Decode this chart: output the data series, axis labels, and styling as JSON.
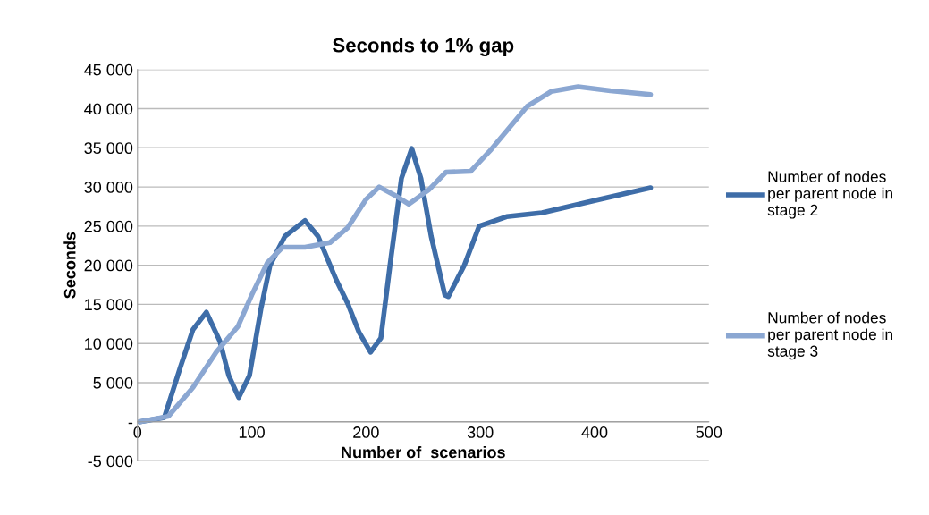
{
  "chart_data": {
    "type": "line",
    "title": "Seconds to 1% gap",
    "xlabel": "Number of  scenarios",
    "ylabel": "Seconds",
    "series": [
      {
        "name": "Number of nodes per parent node in stage 2",
        "color": "#3e6da8",
        "x": [
          2,
          23.5,
          37.6,
          48.6,
          60.3,
          72.1,
          79.9,
          88.6,
          98,
          108,
          116,
          129,
          146.6,
          158,
          174,
          184,
          194,
          204,
          213,
          221,
          231,
          240,
          248,
          257,
          269,
          272,
          286,
          299,
          323,
          354,
          401,
          449
        ],
        "values": [
          0,
          550,
          7000,
          11800,
          14000,
          10300,
          5900,
          3100,
          5900,
          14400,
          20000,
          23700,
          25700,
          23700,
          18100,
          15100,
          11400,
          8900,
          10700,
          20000,
          31100,
          34900,
          31100,
          23700,
          16200,
          16000,
          20000,
          25000,
          26200,
          26700,
          28300,
          29900
        ]
      },
      {
        "name": "Number of nodes per parent node in stage 3",
        "color": "#8ba7d2",
        "x": [
          2,
          27,
          48.6,
          69,
          88,
          100,
          113.6,
          127,
          146.6,
          168.5,
          184,
          200,
          211.6,
          225.7,
          237.5,
          254.7,
          270,
          291.5,
          309.6,
          341,
          362,
          385.6,
          413.8,
          449
        ],
        "values": [
          0,
          700,
          4400,
          8900,
          12200,
          16200,
          20300,
          22300,
          22300,
          22900,
          24800,
          28400,
          30000,
          28900,
          27800,
          29600,
          31900,
          32000,
          34800,
          40300,
          42200,
          42800,
          42300,
          41800
        ]
      }
    ],
    "xlim": [
      0,
      500
    ],
    "xticks": [
      0,
      100,
      200,
      300,
      400,
      500
    ],
    "ylim": [
      -5000,
      45000
    ],
    "yticks": [
      {
        "value": -5000,
        "label": "-5 000"
      },
      {
        "value": 0,
        "label": "-"
      },
      {
        "value": 5000,
        "label": "5 000"
      },
      {
        "value": 10000,
        "label": "10 000"
      },
      {
        "value": 15000,
        "label": "15 000"
      },
      {
        "value": 20000,
        "label": "20 000"
      },
      {
        "value": 25000,
        "label": "25 000"
      },
      {
        "value": 30000,
        "label": "30 000"
      },
      {
        "value": 35000,
        "label": "35 000"
      },
      {
        "value": 40000,
        "label": "40 000"
      },
      {
        "value": 45000,
        "label": "45 000"
      }
    ],
    "grid": "y",
    "legend": "right",
    "marker": "none",
    "line_style": "solid"
  }
}
